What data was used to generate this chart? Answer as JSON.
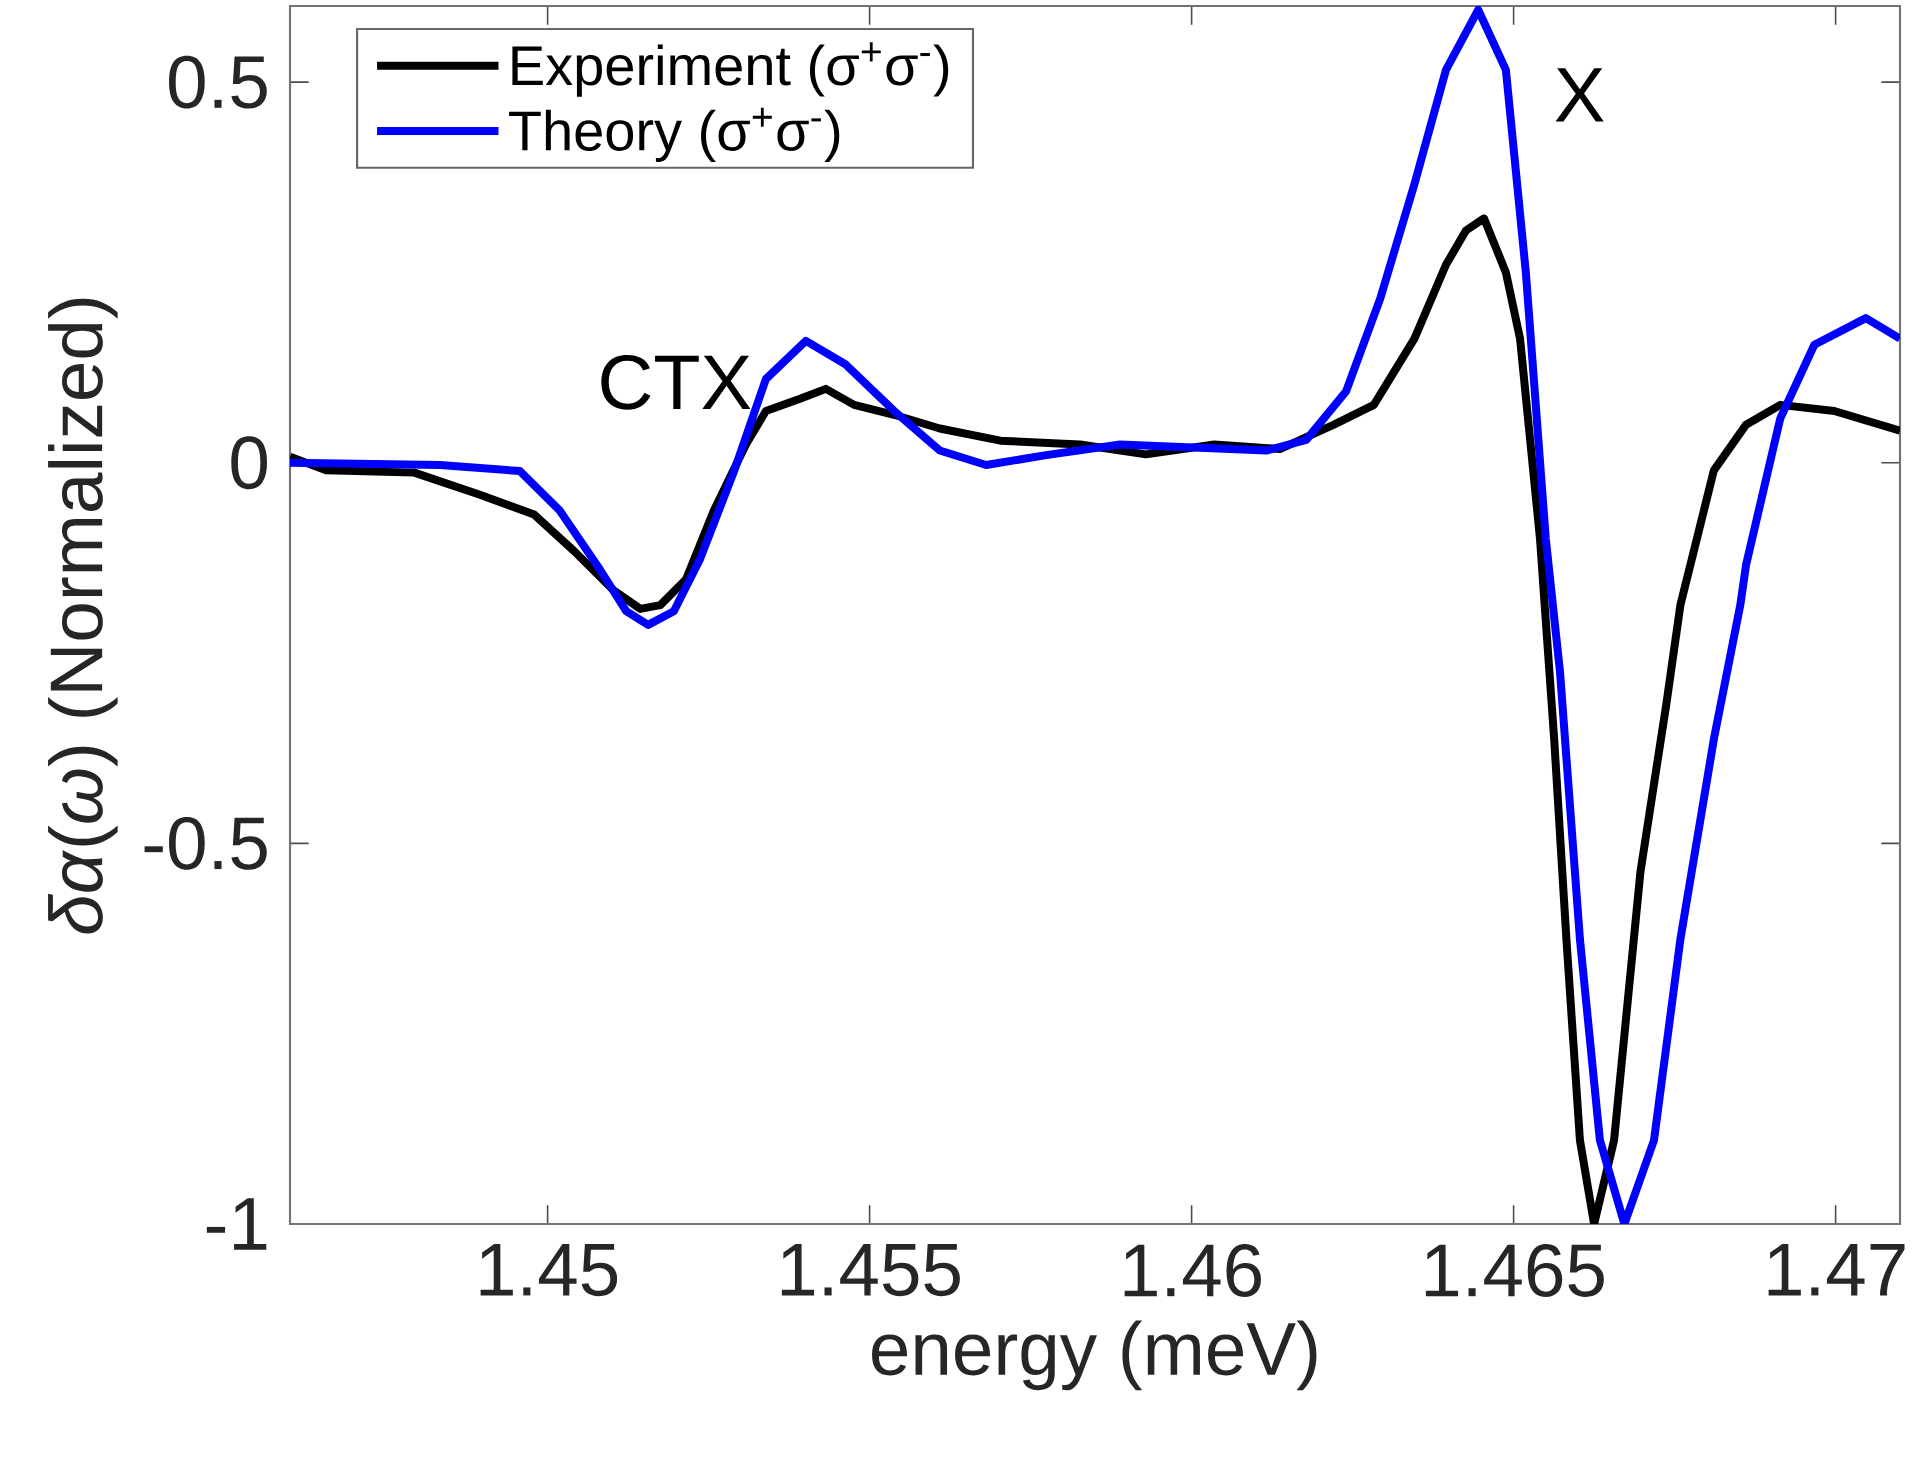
{
  "chart_data": {
    "type": "line",
    "xlabel": "energy (meV)",
    "ylabel": "*δα*(*ω*) (Normalized)",
    "xlim": [
      1.446,
      1.471
    ],
    "ylim": [
      -1,
      0.6
    ],
    "xticks": [
      1.45,
      1.455,
      1.46,
      1.465,
      1.47
    ],
    "yticks": [
      -1,
      -0.5,
      0,
      0.5
    ],
    "legend": "top left",
    "annotations": [
      "CTX",
      "X"
    ],
    "series": [
      {
        "name": "Experiment (σ$^{+}$σ$^{-}$)",
        "color": "#000000",
        "x": [
          1.446,
          1.44656,
          1.44793,
          1.44895,
          1.44979,
          1.45041,
          1.45103,
          1.45144,
          1.45175,
          1.45215,
          1.45258,
          1.45308,
          1.45339,
          1.45392,
          1.45432,
          1.45476,
          1.45538,
          1.45609,
          1.45703,
          1.45827,
          1.45929,
          1.46035,
          1.46137,
          1.46221,
          1.46283,
          1.46346,
          1.46395,
          1.46426,
          1.46454,
          1.46488,
          1.4651,
          1.46541,
          1.46563,
          1.46582,
          1.46603,
          1.46625,
          1.46656,
          1.46697,
          1.46737,
          1.46759,
          1.46811,
          1.46861,
          1.46914,
          1.46998,
          1.471
        ],
        "values": [
          0.008,
          -0.01,
          -0.013,
          -0.042,
          -0.068,
          -0.116,
          -0.168,
          -0.192,
          -0.187,
          -0.153,
          -0.063,
          0.024,
          0.068,
          0.084,
          0.097,
          0.076,
          0.063,
          0.045,
          0.029,
          0.024,
          0.011,
          0.024,
          0.018,
          0.05,
          0.076,
          0.163,
          0.26,
          0.305,
          0.321,
          0.25,
          0.163,
          -0.1,
          -0.363,
          -0.626,
          -0.89,
          -1.0,
          -0.89,
          -0.537,
          -0.318,
          -0.187,
          -0.01,
          0.05,
          0.076,
          0.068,
          0.042
        ]
      },
      {
        "name": "Theory (σ$^{+}$σ$^{-}$)",
        "color": "#0000ff",
        "x": [
          1.446,
          1.44833,
          1.44957,
          1.45019,
          1.45081,
          1.45122,
          1.45156,
          1.45196,
          1.45237,
          1.4529,
          1.45339,
          1.45401,
          1.45463,
          1.45538,
          1.45609,
          1.45681,
          1.45774,
          1.45889,
          1.46116,
          1.46178,
          1.4624,
          1.46293,
          1.46346,
          1.46395,
          1.46445,
          1.46488,
          1.46519,
          1.4655,
          1.46572,
          1.46603,
          1.46634,
          1.46672,
          1.46718,
          1.46759,
          1.46811,
          1.46852,
          1.46861,
          1.46914,
          1.46967,
          1.47047,
          1.471
        ],
        "values": [
          0,
          -0.003,
          -0.011,
          -0.063,
          -0.14,
          -0.195,
          -0.213,
          -0.195,
          -0.126,
          -0.01,
          0.11,
          0.16,
          0.129,
          0.068,
          0.016,
          -0.003,
          0.01,
          0.024,
          0.016,
          0.03,
          0.094,
          0.216,
          0.366,
          0.516,
          0.595,
          0.516,
          0.25,
          -0.1,
          -0.274,
          -0.626,
          -0.89,
          -1.0,
          -0.89,
          -0.626,
          -0.363,
          -0.187,
          -0.134,
          0.058,
          0.155,
          0.19,
          0.163
        ]
      }
    ]
  }
}
